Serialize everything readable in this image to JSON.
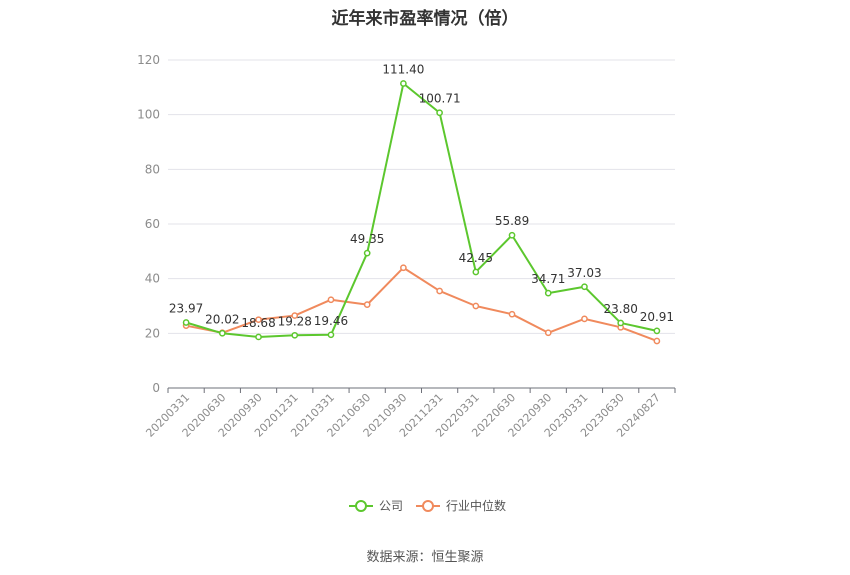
{
  "chart_data": {
    "type": "line",
    "title": "近年来市盈率情况（倍）",
    "categories": [
      "20200331",
      "20200630",
      "20200930",
      "20201231",
      "20210331",
      "20210630",
      "20210930",
      "20211231",
      "20220331",
      "20220630",
      "20220930",
      "20230331",
      "20230630",
      "20240827"
    ],
    "ylim": [
      0,
      120
    ],
    "yticks": [
      0,
      20,
      40,
      60,
      80,
      100,
      120
    ],
    "grid": true,
    "legend_position": "bottom",
    "series": [
      {
        "name": "公司",
        "color": "#5cc72e",
        "values": [
          23.97,
          20.02,
          18.68,
          19.28,
          19.46,
          49.35,
          111.4,
          100.71,
          42.45,
          55.89,
          34.71,
          37.03,
          23.8,
          20.91
        ],
        "labels": [
          "23.97",
          "20.02",
          "18.68",
          "19.28",
          "19.46",
          "49.35",
          "111.40",
          "100.71",
          "42.45",
          "55.89",
          "34.71",
          "37.03",
          "23.80",
          "20.91"
        ]
      },
      {
        "name": "行业中位数",
        "color": "#f08a5d",
        "values": [
          22.8,
          20.2,
          25.0,
          26.5,
          32.3,
          30.5,
          44.0,
          35.5,
          30.0,
          27.0,
          20.2,
          25.3,
          22.2,
          17.2
        ]
      }
    ]
  },
  "source": "数据来源：恒生聚源"
}
